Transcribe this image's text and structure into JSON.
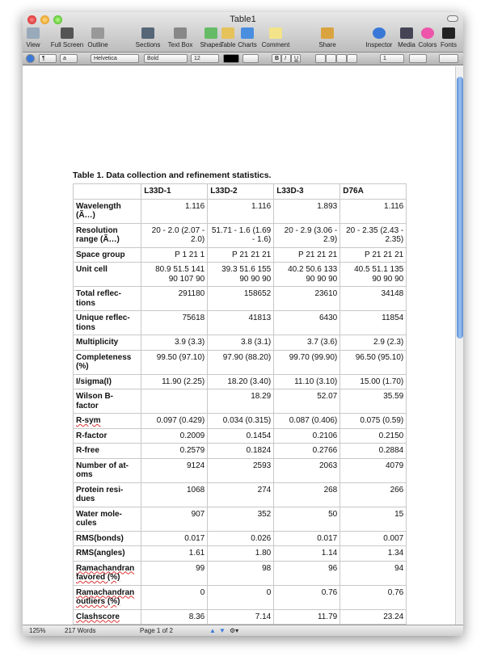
{
  "window": {
    "title": "Table1"
  },
  "toolbar": {
    "items": [
      {
        "label": "View",
        "icon": "view-icon"
      },
      {
        "label": "Full Screen",
        "icon": "fullscreen-icon"
      },
      {
        "label": "Outline",
        "icon": "outline-icon"
      },
      {
        "label": "Sections",
        "icon": "sections-icon"
      },
      {
        "label": "Text Box",
        "icon": "textbox-icon"
      },
      {
        "label": "Shapes",
        "icon": "shapes-icon"
      },
      {
        "label": "Table",
        "icon": "table-icon"
      },
      {
        "label": "Charts",
        "icon": "charts-icon"
      },
      {
        "label": "Comment",
        "icon": "comment-icon"
      },
      {
        "label": "Share",
        "icon": "share-icon"
      },
      {
        "label": "Inspector",
        "icon": "inspector-icon"
      },
      {
        "label": "Media",
        "icon": "media-icon"
      },
      {
        "label": "Colors",
        "icon": "colors-icon"
      },
      {
        "label": "Fonts",
        "icon": "fonts-icon"
      }
    ]
  },
  "format_bar": {
    "paragraph_style": "¶",
    "char_style": "a",
    "font": "Helvetica",
    "typeface": "Bold",
    "size": "12",
    "bold": "B",
    "italic": "I",
    "underline": "U",
    "line_spacing": "1"
  },
  "document": {
    "caption": "Table 1.  Data collection and refinement statistics.",
    "columns": [
      "",
      "L33D-1",
      "L33D-2",
      "L33D-3",
      "D76A"
    ],
    "rows": [
      [
        "Wavelength (Ã…)",
        "1.116",
        "1.116",
        "1.893",
        "1.116"
      ],
      [
        "Resolution range (Ã…)",
        "20  - 2.0 (2.07 - 2.0)",
        "51.71  - 1.6 (1.69 - 1.6)",
        "20  - 2.9 (3.06 - 2.9)",
        "20  - 2.35 (2.43 - 2.35)"
      ],
      [
        "Space group",
        "P 1 21 1",
        "P 21 21 21",
        "P 21 21 21",
        "P 21 21 21"
      ],
      [
        "Unit cell",
        "80.9 51.5 141 90 107 90",
        "39.3 51.6 155 90 90 90",
        "40.2 50.6 133 90 90 90",
        "40.5 51.1 135 90 90 90"
      ],
      [
        "Total reflec-tions",
        "291180",
        "158652",
        "23610",
        "34148"
      ],
      [
        "Unique reflec-tions",
        "75618",
        "41813",
        "6430",
        "11854"
      ],
      [
        "Multiplicity",
        "3.9 (3.3)",
        "3.8 (3.1)",
        "3.7 (3.6)",
        "2.9 (2.3)"
      ],
      [
        "Completeness (%)",
        "99.50 (97.10)",
        "97.90 (88.20)",
        "99.70 (99.90)",
        "96.50 (95.10)"
      ],
      [
        "I/sigma(I)",
        "11.90 (2.25)",
        "18.20 (3.40)",
        "11.10 (3.10)",
        "15.00 (1.70)"
      ],
      [
        "Wilson B-factor",
        "",
        "18.29",
        "52.07",
        "35.59"
      ],
      [
        "R-sym",
        "0.097 (0.429)",
        "0.034 (0.315)",
        "0.087 (0.406)",
        "0.075 (0.59)"
      ],
      [
        "R-factor",
        "0.2009",
        "0.1454",
        "0.2106",
        "0.2150"
      ],
      [
        "R-free",
        "0.2579",
        "0.1824",
        "0.2766",
        "0.2884"
      ],
      [
        "Number of at-oms",
        "9124",
        "2593",
        "2063",
        "4079"
      ],
      [
        "Protein resi-dues",
        "1068",
        "274",
        "268",
        "266"
      ],
      [
        "Water mole-cules",
        "907",
        "352",
        "50",
        "15"
      ],
      [
        "RMS(bonds)",
        "0.017",
        "0.026",
        "0.017",
        "0.007"
      ],
      [
        "RMS(angles)",
        "1.61",
        "1.80",
        "1.14",
        "1.34"
      ],
      [
        "Ramachandran favored (%)",
        "99",
        "98",
        "96",
        "94"
      ],
      [
        "Ramachandran outliers (%)",
        "0",
        "0",
        "0.76",
        "0.76"
      ],
      [
        "Clashscore",
        "8.36",
        "7.14",
        "11.79",
        "23.24"
      ]
    ]
  },
  "status": {
    "zoom": "125%",
    "words": "217 Words",
    "page": "Page 1 of 2"
  }
}
